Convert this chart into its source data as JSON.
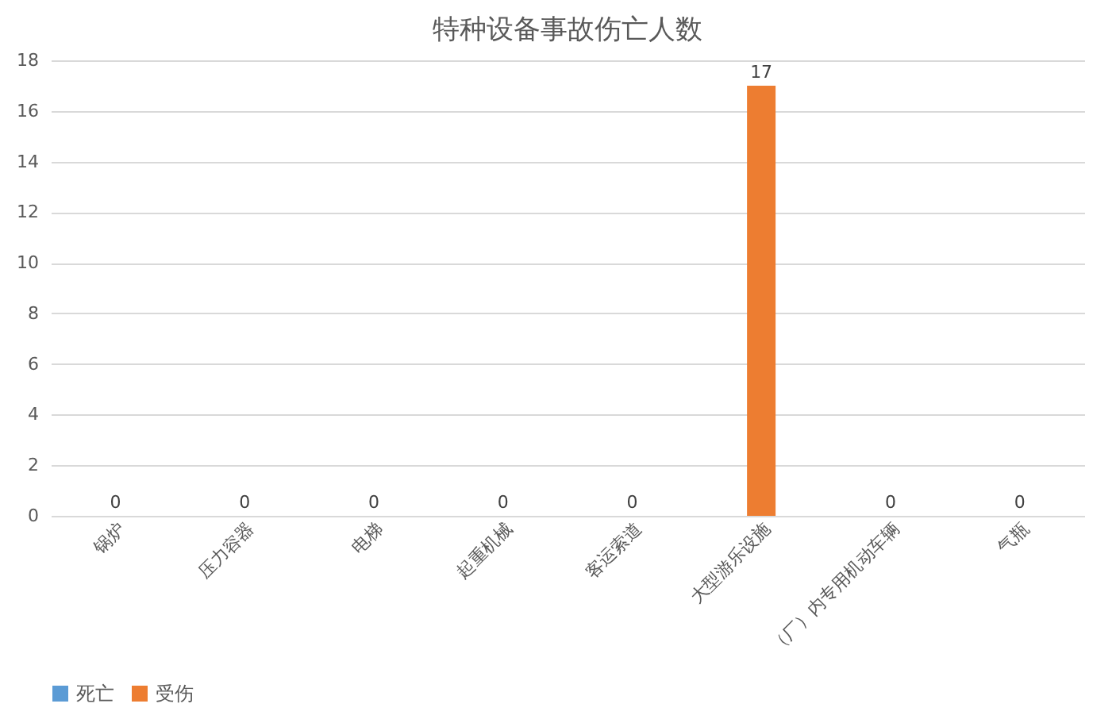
{
  "chart_data": {
    "type": "bar",
    "title": "特种设备事故伤亡人数",
    "categories": [
      "锅炉",
      "压力容器",
      "电梯",
      "起重机械",
      "客运索道",
      "大型游乐设施",
      "（厂）内专用机动车辆",
      "气瓶"
    ],
    "series": [
      {
        "name": "死亡",
        "color": "#5b9bd5",
        "values": [
          null,
          null,
          null,
          null,
          null,
          null,
          null,
          null
        ]
      },
      {
        "name": "受伤",
        "color": "#ed7d31",
        "values": [
          0,
          0,
          0,
          0,
          0,
          17,
          0,
          0
        ]
      }
    ],
    "ylim": [
      0,
      18
    ],
    "yticks": [
      0,
      2,
      4,
      6,
      8,
      10,
      12,
      14,
      16,
      18
    ],
    "grid": "y",
    "legend": "bottom",
    "data_labels": true
  }
}
